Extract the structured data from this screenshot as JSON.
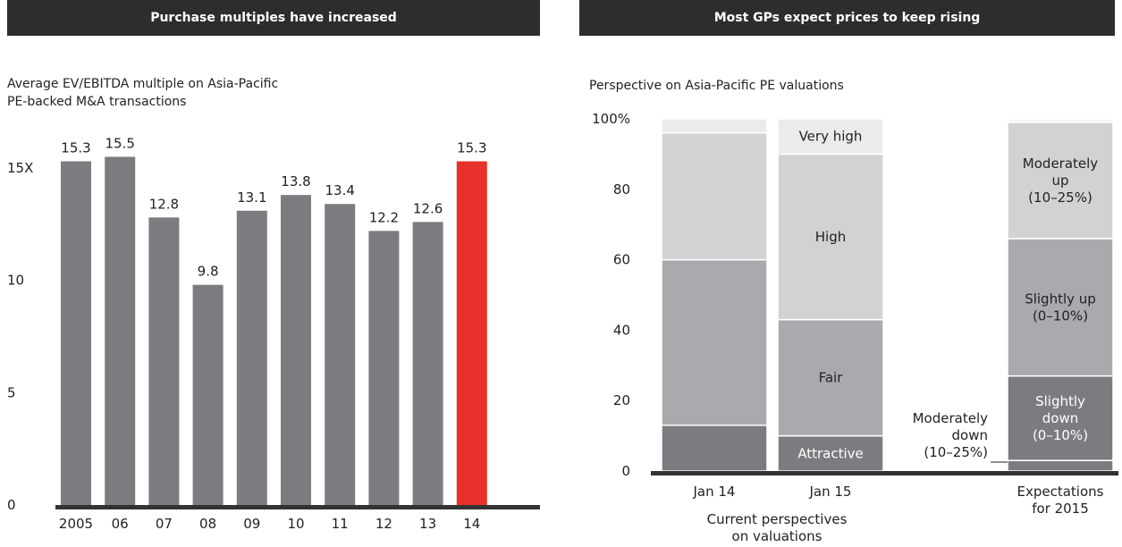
{
  "left_panel": {
    "header": "Purchase multiples have increased",
    "subtitle_line1": "Average EV/EBITDA multiple on Asia-Pacific",
    "subtitle_line2": "PE-backed M&A transactions"
  },
  "right_panel": {
    "header": "Most GPs expect prices to keep rising",
    "subtitle": "Perspective on Asia-Pacific PE valuations"
  },
  "colors": {
    "bar": "#7b7c80",
    "highlight": "#e8312a",
    "axis": "#333333",
    "seg_attractive": "#7b7c80",
    "seg_fair": "#a9aaae",
    "seg_high": "#d1d2d4",
    "seg_veryhigh": "#ebebec",
    "seg_top": "#f4f4f4"
  },
  "chart_data": [
    {
      "type": "bar",
      "title": "Average EV/EBITDA multiple on Asia-Pacific PE-backed M&A transactions",
      "categories": [
        "2005",
        "06",
        "07",
        "08",
        "09",
        "10",
        "11",
        "12",
        "13",
        "14"
      ],
      "values": [
        15.3,
        15.5,
        12.8,
        9.8,
        13.1,
        13.8,
        13.4,
        12.2,
        12.6,
        15.3
      ],
      "value_labels": [
        "15.3",
        "15.5",
        "12.8",
        "9.8",
        "13.1",
        "13.8",
        "13.4",
        "12.2",
        "12.6",
        "15.3"
      ],
      "highlight_index": 9,
      "yticks": [
        0,
        5,
        10,
        15
      ],
      "ytick_labels": [
        "0",
        "5",
        "10",
        "15X"
      ],
      "ylim": [
        0,
        16.5
      ],
      "grid": false
    },
    {
      "type": "bar",
      "stacked": true,
      "title": "Perspective on Asia-Pacific PE valuations",
      "yticks": [
        0,
        20,
        40,
        60,
        80,
        100
      ],
      "ytick_labels": [
        "0",
        "20",
        "40",
        "60",
        "80",
        "100%"
      ],
      "ylim": [
        0,
        100
      ],
      "grid": false,
      "bars": [
        {
          "label": "Jan 14",
          "segments": [
            {
              "value": 13,
              "label": "",
              "color_key": "seg_attractive"
            },
            {
              "value": 47,
              "label": "",
              "color_key": "seg_fair"
            },
            {
              "value": 36,
              "label": "",
              "color_key": "seg_high"
            },
            {
              "value": 4,
              "label": "",
              "color_key": "seg_veryhigh"
            }
          ]
        },
        {
          "label": "Jan 15",
          "segments": [
            {
              "value": 10,
              "label": "Attractive",
              "color_key": "seg_attractive"
            },
            {
              "value": 33,
              "label": "Fair",
              "color_key": "seg_fair"
            },
            {
              "value": 47,
              "label": "High",
              "color_key": "seg_high"
            },
            {
              "value": 10,
              "label": "Very high",
              "color_key": "seg_veryhigh"
            }
          ]
        },
        {
          "label": "Expectations for 2015",
          "label_lines": [
            "Expectations",
            "for 2015"
          ],
          "segments": [
            {
              "value": 3,
              "label": "",
              "color_key": "seg_attractive"
            },
            {
              "value": 24,
              "label_lines": [
                "Slightly",
                "down",
                "(0–10%)"
              ],
              "color_key": "seg_attractive"
            },
            {
              "value": 39,
              "label_lines": [
                "Slightly up",
                "(0–10%)"
              ],
              "color_key": "seg_fair"
            },
            {
              "value": 33,
              "label_lines": [
                "Moderately",
                "up",
                "(10–25%)"
              ],
              "color_key": "seg_high"
            },
            {
              "value": 1,
              "label": "",
              "color_key": "seg_top"
            }
          ]
        }
      ],
      "group_label_lines": [
        "Current perspectives",
        "on valuations"
      ],
      "callout_lines": [
        "Moderately",
        "down",
        "(10–25%)"
      ]
    }
  ]
}
